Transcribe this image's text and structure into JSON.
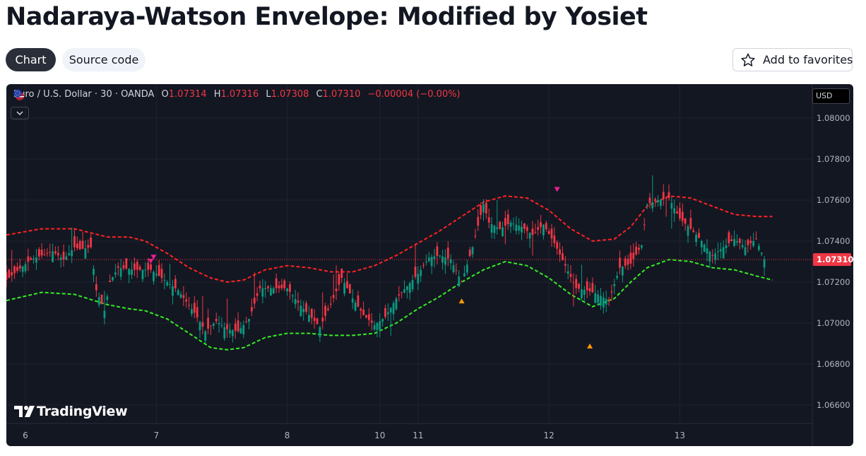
{
  "page": {
    "title": "Nadaraya-Watson Envelope: Modified by Yosiet",
    "tabs": [
      "Chart",
      "Source code"
    ],
    "favorites_label": "Add to favorites"
  },
  "legend": {
    "symbol": "Euro / U.S. Dollar · 30 · OANDA",
    "open_key": "O",
    "open": "1.07314",
    "high_key": "H",
    "high": "1.07316",
    "low_key": "L",
    "low": "1.07308",
    "close_key": "C",
    "close": "1.07310",
    "change": "−0.00004 (−0.00%)"
  },
  "currency_badge": "USD",
  "last_price_label": "1.07310",
  "brand": "TradingView",
  "colors": {
    "background": "#131722",
    "up": "#089981",
    "down": "#f23645",
    "upper_band": "#ff2222",
    "lower_band": "#33ee22",
    "sell_marker": "#e91e96",
    "buy_marker": "#ff9800",
    "price_line": "#f23645"
  },
  "chart_data": {
    "type": "candlestick",
    "symbol": "EURUSD",
    "timeframe": "30",
    "y_ticks": [
      "1.08000",
      "1.07800",
      "1.07600",
      "1.07400",
      "1.07200",
      "1.07000",
      "1.06800",
      "1.06600"
    ],
    "ylim": [
      1.0648,
      1.0818
    ],
    "x_ticks": [
      {
        "label": "6",
        "t": 0
      },
      {
        "label": "7",
        "t": 48
      },
      {
        "label": "8",
        "t": 96
      },
      {
        "label": "10",
        "t": 130
      },
      {
        "label": "11",
        "t": 144
      },
      {
        "label": "12",
        "t": 192
      },
      {
        "label": "13",
        "t": 240
      }
    ],
    "last_price": 1.0731,
    "close_path": [
      [
        -7,
        1.0721
      ],
      [
        2,
        1.0731
      ],
      [
        6,
        1.0733
      ],
      [
        10,
        1.0735
      ],
      [
        14,
        1.0731
      ],
      [
        18,
        1.0737
      ],
      [
        20,
        1.0736
      ],
      [
        24,
        1.0737
      ],
      [
        26,
        1.0716
      ],
      [
        29,
        1.0706
      ],
      [
        31,
        1.072
      ],
      [
        34,
        1.0727
      ],
      [
        40,
        1.0726
      ],
      [
        46,
        1.0726
      ],
      [
        50,
        1.0722
      ],
      [
        56,
        1.0716
      ],
      [
        62,
        1.0705
      ],
      [
        66,
        1.0696
      ],
      [
        70,
        1.0701
      ],
      [
        74,
        1.0697
      ],
      [
        78,
        1.0696
      ],
      [
        82,
        1.0702
      ],
      [
        86,
        1.0717
      ],
      [
        92,
        1.0717
      ],
      [
        96,
        1.0717
      ],
      [
        100,
        1.071
      ],
      [
        104,
        1.0704
      ],
      [
        108,
        1.0698
      ],
      [
        112,
        1.0709
      ],
      [
        116,
        1.0722
      ],
      [
        120,
        1.0712
      ],
      [
        124,
        1.0704
      ],
      [
        128,
        1.0699
      ],
      [
        132,
        1.0703
      ],
      [
        136,
        1.0712
      ],
      [
        140,
        1.0718
      ],
      [
        144,
        1.0724
      ],
      [
        148,
        1.0732
      ],
      [
        152,
        1.0733
      ],
      [
        156,
        1.0731
      ],
      [
        160,
        1.072
      ],
      [
        164,
        1.0737
      ],
      [
        168,
        1.0758
      ],
      [
        170,
        1.0749
      ],
      [
        174,
        1.0746
      ],
      [
        178,
        1.0749
      ],
      [
        182,
        1.0747
      ],
      [
        186,
        1.0743
      ],
      [
        190,
        1.0748
      ],
      [
        194,
        1.0739
      ],
      [
        198,
        1.0728
      ],
      [
        202,
        1.0717
      ],
      [
        206,
        1.0716
      ],
      [
        210,
        1.0714
      ],
      [
        214,
        1.0711
      ],
      [
        218,
        1.0727
      ],
      [
        222,
        1.0729
      ],
      [
        226,
        1.0738
      ],
      [
        228,
        1.0758
      ],
      [
        232,
        1.076
      ],
      [
        236,
        1.0761
      ],
      [
        240,
        1.0751
      ],
      [
        244,
        1.0746
      ],
      [
        248,
        1.074
      ],
      [
        252,
        1.0733
      ],
      [
        256,
        1.0737
      ],
      [
        260,
        1.0741
      ],
      [
        264,
        1.0737
      ],
      [
        268,
        1.0741
      ],
      [
        271,
        1.0731
      ]
    ],
    "candle_t_range": [
      -7,
      271
    ],
    "upper_band": [
      [
        -7,
        1.0743
      ],
      [
        6,
        1.0746
      ],
      [
        18,
        1.0746
      ],
      [
        30,
        1.0742
      ],
      [
        38,
        1.0742
      ],
      [
        44,
        1.074
      ],
      [
        52,
        1.0734
      ],
      [
        60,
        1.0727
      ],
      [
        68,
        1.0722
      ],
      [
        74,
        1.072
      ],
      [
        80,
        1.0721
      ],
      [
        88,
        1.0726
      ],
      [
        96,
        1.0728
      ],
      [
        104,
        1.0727
      ],
      [
        112,
        1.0725
      ],
      [
        120,
        1.0725
      ],
      [
        128,
        1.0728
      ],
      [
        136,
        1.0733
      ],
      [
        144,
        1.0739
      ],
      [
        152,
        1.0745
      ],
      [
        160,
        1.0752
      ],
      [
        168,
        1.0759
      ],
      [
        176,
        1.0762
      ],
      [
        184,
        1.0761
      ],
      [
        192,
        1.0755
      ],
      [
        200,
        1.0746
      ],
      [
        208,
        1.074
      ],
      [
        216,
        1.0741
      ],
      [
        222,
        1.0747
      ],
      [
        228,
        1.0757
      ],
      [
        236,
        1.0762
      ],
      [
        244,
        1.0761
      ],
      [
        252,
        1.0757
      ],
      [
        260,
        1.0753
      ],
      [
        268,
        1.0752
      ],
      [
        274,
        1.0752
      ]
    ],
    "lower_band": [
      [
        -7,
        1.0711
      ],
      [
        6,
        1.0715
      ],
      [
        18,
        1.0714
      ],
      [
        30,
        1.0709
      ],
      [
        38,
        1.0707
      ],
      [
        44,
        1.0706
      ],
      [
        52,
        1.0702
      ],
      [
        60,
        1.0695
      ],
      [
        68,
        1.0688
      ],
      [
        74,
        1.0687
      ],
      [
        80,
        1.0688
      ],
      [
        88,
        1.0693
      ],
      [
        96,
        1.0695
      ],
      [
        104,
        1.0695
      ],
      [
        112,
        1.0694
      ],
      [
        120,
        1.0694
      ],
      [
        128,
        1.0695
      ],
      [
        136,
        1.07
      ],
      [
        144,
        1.0707
      ],
      [
        152,
        1.0713
      ],
      [
        160,
        1.072
      ],
      [
        168,
        1.0726
      ],
      [
        176,
        1.073
      ],
      [
        184,
        1.0728
      ],
      [
        192,
        1.0722
      ],
      [
        200,
        1.0714
      ],
      [
        208,
        1.0708
      ],
      [
        216,
        1.0712
      ],
      [
        222,
        1.072
      ],
      [
        228,
        1.0727
      ],
      [
        236,
        1.0731
      ],
      [
        244,
        1.073
      ],
      [
        252,
        1.0727
      ],
      [
        260,
        1.0726
      ],
      [
        268,
        1.0723
      ],
      [
        274,
        1.0721
      ]
    ],
    "sell_signals": [
      [
        46,
        1.073
      ],
      [
        47,
        1.0732
      ],
      [
        195,
        1.0765
      ]
    ],
    "buy_signals": [
      [
        160,
        1.0711
      ],
      [
        207,
        1.0689
      ]
    ]
  }
}
